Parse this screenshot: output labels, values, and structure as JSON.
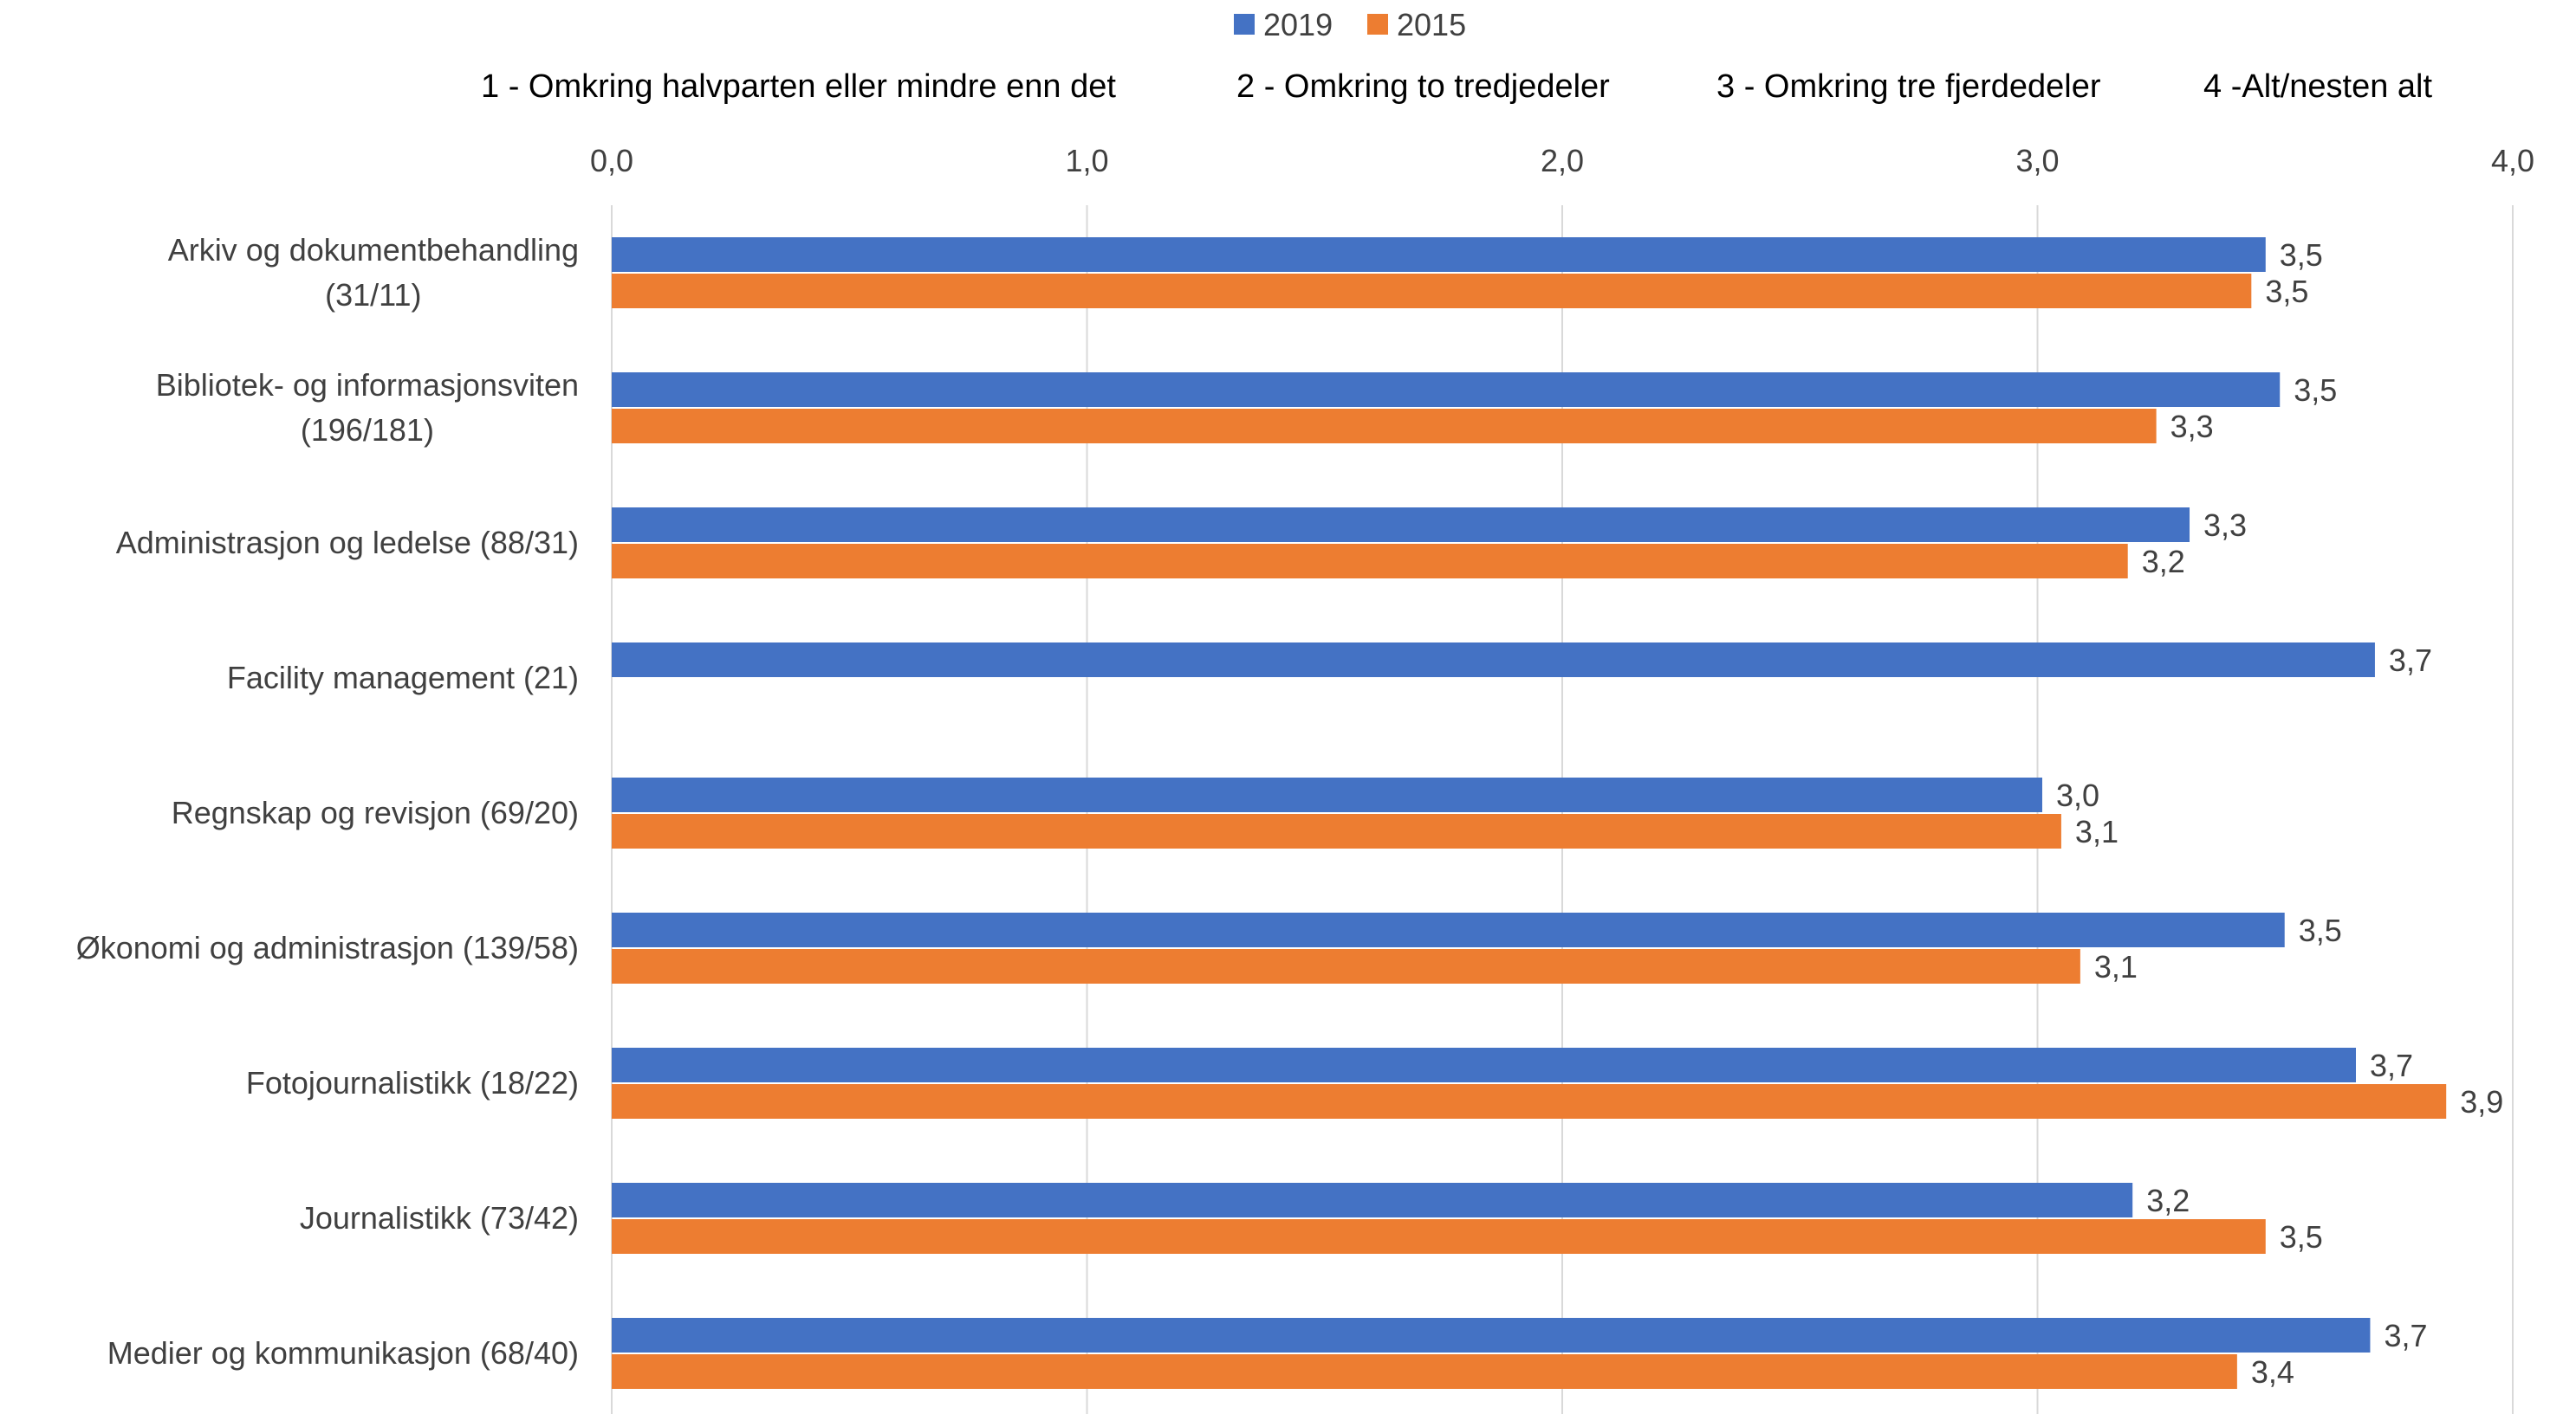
{
  "legend": [
    {
      "name": "2019",
      "color": "#4472c4"
    },
    {
      "name": "2015",
      "color": "#ed7d31"
    }
  ],
  "scale_notes": [
    "1 - Omkring halvparten eller mindre enn det",
    "2 - Omkring to tredjedeler",
    "3 - Omkring tre fjerdedeler",
    "4 -Alt/nesten alt"
  ],
  "chart_data": {
    "type": "bar",
    "orientation": "horizontal",
    "title": "",
    "xlim": [
      0,
      4
    ],
    "x_ticks": [
      "0,0",
      "1,0",
      "2,0",
      "3,0",
      "4,0"
    ],
    "grid": true,
    "legend_position": "top",
    "categories": [
      [
        "Arkiv og dokumentbehandling",
        "(31/11)"
      ],
      [
        "Bibliotek- og informasjonsviten",
        "(196/181)"
      ],
      [
        "Administrasjon og ledelse (88/31)"
      ],
      [
        "Facility management (21)"
      ],
      [
        "Regnskap og revisjon (69/20)"
      ],
      [
        "Økonomi og administrasjon (139/58)"
      ],
      [
        "Fotojournalistikk (18/22)"
      ],
      [
        "Journalistikk (73/42)"
      ],
      [
        "Medier og kommunikasjon (68/40)"
      ]
    ],
    "series": [
      {
        "name": "2019",
        "color": "#4472c4",
        "values": [
          3.48,
          3.51,
          3.32,
          3.71,
          3.01,
          3.52,
          3.67,
          3.2,
          3.7
        ],
        "labels": [
          "3,5",
          "3,5",
          "3,3",
          "3,7",
          "3,0",
          "3,5",
          "3,7",
          "3,2",
          "3,7"
        ]
      },
      {
        "name": "2015",
        "color": "#ed7d31",
        "values": [
          3.45,
          3.25,
          3.19,
          null,
          3.05,
          3.09,
          3.86,
          3.48,
          3.42
        ],
        "labels": [
          "3,5",
          "3,3",
          "3,2",
          "",
          "3,1",
          "3,1",
          "3,9",
          "3,5",
          "3,4"
        ]
      }
    ]
  }
}
